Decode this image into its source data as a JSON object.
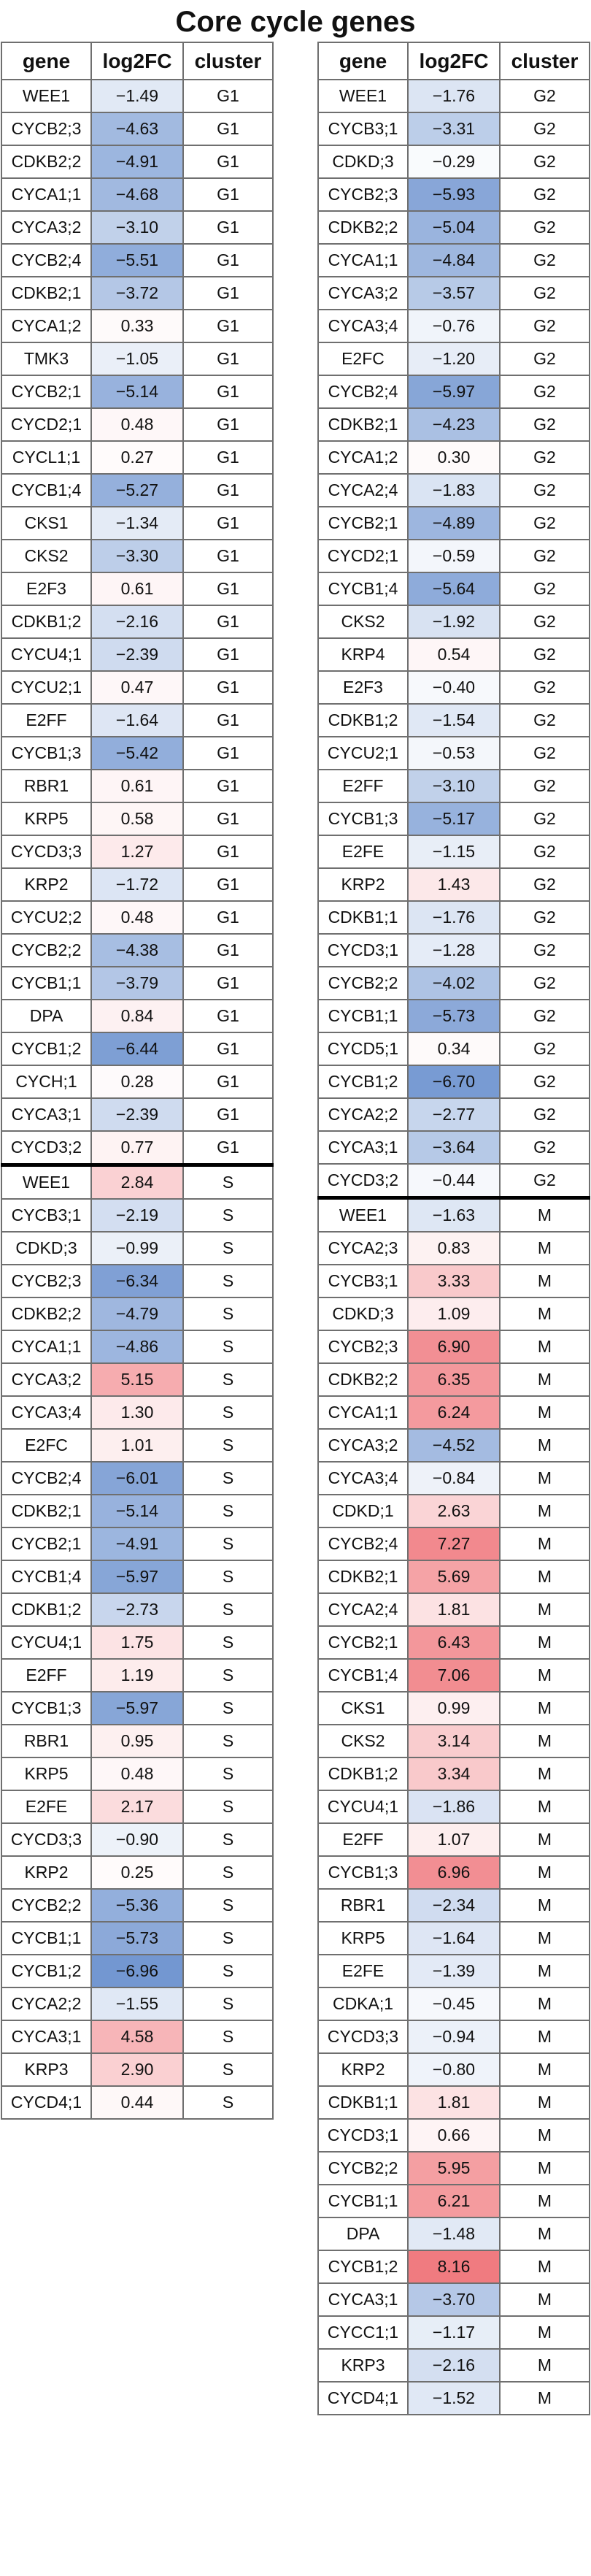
{
  "chart_data": {
    "type": "table",
    "title": "Core cycle genes",
    "columns": [
      "gene",
      "log2FC",
      "cluster"
    ],
    "color_scale": {
      "negative": "#5b85c9",
      "neutral": "#ffffff",
      "positive": "#f07b80",
      "vmax": 8.16
    },
    "tables": [
      {
        "rows": [
          [
            "WEE1",
            "−1.49",
            "G1"
          ],
          [
            "CYCB2;3",
            "−4.63",
            "G1"
          ],
          [
            "CDKB2;2",
            "−4.91",
            "G1"
          ],
          [
            "CYCA1;1",
            "−4.68",
            "G1"
          ],
          [
            "CYCA3;2",
            "−3.10",
            "G1"
          ],
          [
            "CYCB2;4",
            "−5.51",
            "G1"
          ],
          [
            "CDKB2;1",
            "−3.72",
            "G1"
          ],
          [
            "CYCA1;2",
            "0.33",
            "G1"
          ],
          [
            "TMK3",
            "−1.05",
            "G1"
          ],
          [
            "CYCB2;1",
            "−5.14",
            "G1"
          ],
          [
            "CYCD2;1",
            "0.48",
            "G1"
          ],
          [
            "CYCL1;1",
            "0.27",
            "G1"
          ],
          [
            "CYCB1;4",
            "−5.27",
            "G1"
          ],
          [
            "CKS1",
            "−1.34",
            "G1"
          ],
          [
            "CKS2",
            "−3.30",
            "G1"
          ],
          [
            "E2F3",
            "0.61",
            "G1"
          ],
          [
            "CDKB1;2",
            "−2.16",
            "G1"
          ],
          [
            "CYCU4;1",
            "−2.39",
            "G1"
          ],
          [
            "CYCU2;1",
            "0.47",
            "G1"
          ],
          [
            "E2FF",
            "−1.64",
            "G1"
          ],
          [
            "CYCB1;3",
            "−5.42",
            "G1"
          ],
          [
            "RBR1",
            "0.61",
            "G1"
          ],
          [
            "KRP5",
            "0.58",
            "G1"
          ],
          [
            "CYCD3;3",
            "1.27",
            "G1"
          ],
          [
            "KRP2",
            "−1.72",
            "G1"
          ],
          [
            "CYCU2;2",
            "0.48",
            "G1"
          ],
          [
            "CYCB2;2",
            "−4.38",
            "G1"
          ],
          [
            "CYCB1;1",
            "−3.79",
            "G1"
          ],
          [
            "DPA",
            "0.84",
            "G1"
          ],
          [
            "CYCB1;2",
            "−6.44",
            "G1"
          ],
          [
            "CYCH;1",
            "0.28",
            "G1"
          ],
          [
            "CYCA3;1",
            "−2.39",
            "G1"
          ],
          [
            "CYCD3;2",
            "0.77",
            "G1"
          ],
          [
            "WEE1",
            "2.84",
            "S"
          ],
          [
            "CYCB3;1",
            "−2.19",
            "S"
          ],
          [
            "CDKD;3",
            "−0.99",
            "S"
          ],
          [
            "CYCB2;3",
            "−6.34",
            "S"
          ],
          [
            "CDKB2;2",
            "−4.79",
            "S"
          ],
          [
            "CYCA1;1",
            "−4.86",
            "S"
          ],
          [
            "CYCA3;2",
            "5.15",
            "S"
          ],
          [
            "CYCA3;4",
            "1.30",
            "S"
          ],
          [
            "E2FC",
            "1.01",
            "S"
          ],
          [
            "CYCB2;4",
            "−6.01",
            "S"
          ],
          [
            "CDKB2;1",
            "−5.14",
            "S"
          ],
          [
            "CYCB2;1",
            "−4.91",
            "S"
          ],
          [
            "CYCB1;4",
            "−5.97",
            "S"
          ],
          [
            "CDKB1;2",
            "−2.73",
            "S"
          ],
          [
            "CYCU4;1",
            "1.75",
            "S"
          ],
          [
            "E2FF",
            "1.19",
            "S"
          ],
          [
            "CYCB1;3",
            "−5.97",
            "S"
          ],
          [
            "RBR1",
            "0.95",
            "S"
          ],
          [
            "KRP5",
            "0.48",
            "S"
          ],
          [
            "E2FE",
            "2.17",
            "S"
          ],
          [
            "CYCD3;3",
            "−0.90",
            "S"
          ],
          [
            "KRP2",
            "0.25",
            "S"
          ],
          [
            "CYCB2;2",
            "−5.36",
            "S"
          ],
          [
            "CYCB1;1",
            "−5.73",
            "S"
          ],
          [
            "CYCB1;2",
            "−6.96",
            "S"
          ],
          [
            "CYCA2;2",
            "−1.55",
            "S"
          ],
          [
            "CYCA3;1",
            "4.58",
            "S"
          ],
          [
            "KRP3",
            "2.90",
            "S"
          ],
          [
            "CYCD4;1",
            "0.44",
            "S"
          ]
        ]
      },
      {
        "rows": [
          [
            "WEE1",
            "−1.76",
            "G2"
          ],
          [
            "CYCB3;1",
            "−3.31",
            "G2"
          ],
          [
            "CDKD;3",
            "−0.29",
            "G2"
          ],
          [
            "CYCB2;3",
            "−5.93",
            "G2"
          ],
          [
            "CDKB2;2",
            "−5.04",
            "G2"
          ],
          [
            "CYCA1;1",
            "−4.84",
            "G2"
          ],
          [
            "CYCA3;2",
            "−3.57",
            "G2"
          ],
          [
            "CYCA3;4",
            "−0.76",
            "G2"
          ],
          [
            "E2FC",
            "−1.20",
            "G2"
          ],
          [
            "CYCB2;4",
            "−5.97",
            "G2"
          ],
          [
            "CDKB2;1",
            "−4.23",
            "G2"
          ],
          [
            "CYCA1;2",
            "0.30",
            "G2"
          ],
          [
            "CYCA2;4",
            "−1.83",
            "G2"
          ],
          [
            "CYCB2;1",
            "−4.89",
            "G2"
          ],
          [
            "CYCD2;1",
            "−0.59",
            "G2"
          ],
          [
            "CYCB1;4",
            "−5.64",
            "G2"
          ],
          [
            "CKS2",
            "−1.92",
            "G2"
          ],
          [
            "KRP4",
            "0.54",
            "G2"
          ],
          [
            "E2F3",
            "−0.40",
            "G2"
          ],
          [
            "CDKB1;2",
            "−1.54",
            "G2"
          ],
          [
            "CYCU2;1",
            "−0.53",
            "G2"
          ],
          [
            "E2FF",
            "−3.10",
            "G2"
          ],
          [
            "CYCB1;3",
            "−5.17",
            "G2"
          ],
          [
            "E2FE",
            "−1.15",
            "G2"
          ],
          [
            "KRP2",
            "1.43",
            "G2"
          ],
          [
            "CDKB1;1",
            "−1.76",
            "G2"
          ],
          [
            "CYCD3;1",
            "−1.28",
            "G2"
          ],
          [
            "CYCB2;2",
            "−4.02",
            "G2"
          ],
          [
            "CYCB1;1",
            "−5.73",
            "G2"
          ],
          [
            "CYCD5;1",
            "0.34",
            "G2"
          ],
          [
            "CYCB1;2",
            "−6.70",
            "G2"
          ],
          [
            "CYCA2;2",
            "−2.77",
            "G2"
          ],
          [
            "CYCA3;1",
            "−3.64",
            "G2"
          ],
          [
            "CYCD3;2",
            "−0.44",
            "G2"
          ],
          [
            "WEE1",
            "−1.63",
            "M"
          ],
          [
            "CYCA2;3",
            "0.83",
            "M"
          ],
          [
            "CYCB3;1",
            "3.33",
            "M"
          ],
          [
            "CDKD;3",
            "1.09",
            "M"
          ],
          [
            "CYCB2;3",
            "6.90",
            "M"
          ],
          [
            "CDKB2;2",
            "6.35",
            "M"
          ],
          [
            "CYCA1;1",
            "6.24",
            "M"
          ],
          [
            "CYCA3;2",
            "−4.52",
            "M"
          ],
          [
            "CYCA3;4",
            "−0.84",
            "M"
          ],
          [
            "CDKD;1",
            "2.63",
            "M"
          ],
          [
            "CYCB2;4",
            "7.27",
            "M"
          ],
          [
            "CDKB2;1",
            "5.69",
            "M"
          ],
          [
            "CYCA2;4",
            "1.81",
            "M"
          ],
          [
            "CYCB2;1",
            "6.43",
            "M"
          ],
          [
            "CYCB1;4",
            "7.06",
            "M"
          ],
          [
            "CKS1",
            "0.99",
            "M"
          ],
          [
            "CKS2",
            "3.14",
            "M"
          ],
          [
            "CDKB1;2",
            "3.34",
            "M"
          ],
          [
            "CYCU4;1",
            "−1.86",
            "M"
          ],
          [
            "E2FF",
            "1.07",
            "M"
          ],
          [
            "CYCB1;3",
            "6.96",
            "M"
          ],
          [
            "RBR1",
            "−2.34",
            "M"
          ],
          [
            "KRP5",
            "−1.64",
            "M"
          ],
          [
            "E2FE",
            "−1.39",
            "M"
          ],
          [
            "CDKA;1",
            "−0.45",
            "M"
          ],
          [
            "CYCD3;3",
            "−0.94",
            "M"
          ],
          [
            "KRP2",
            "−0.80",
            "M"
          ],
          [
            "CDKB1;1",
            "1.81",
            "M"
          ],
          [
            "CYCD3;1",
            "0.66",
            "M"
          ],
          [
            "CYCB2;2",
            "5.95",
            "M"
          ],
          [
            "CYCB1;1",
            "6.21",
            "M"
          ],
          [
            "DPA",
            "−1.48",
            "M"
          ],
          [
            "CYCB1;2",
            "8.16",
            "M"
          ],
          [
            "CYCA3;1",
            "−3.70",
            "M"
          ],
          [
            "CYCC1;1",
            "−1.17",
            "M"
          ],
          [
            "KRP3",
            "−2.16",
            "M"
          ],
          [
            "CYCD4;1",
            "−1.52",
            "M"
          ]
        ]
      }
    ]
  }
}
